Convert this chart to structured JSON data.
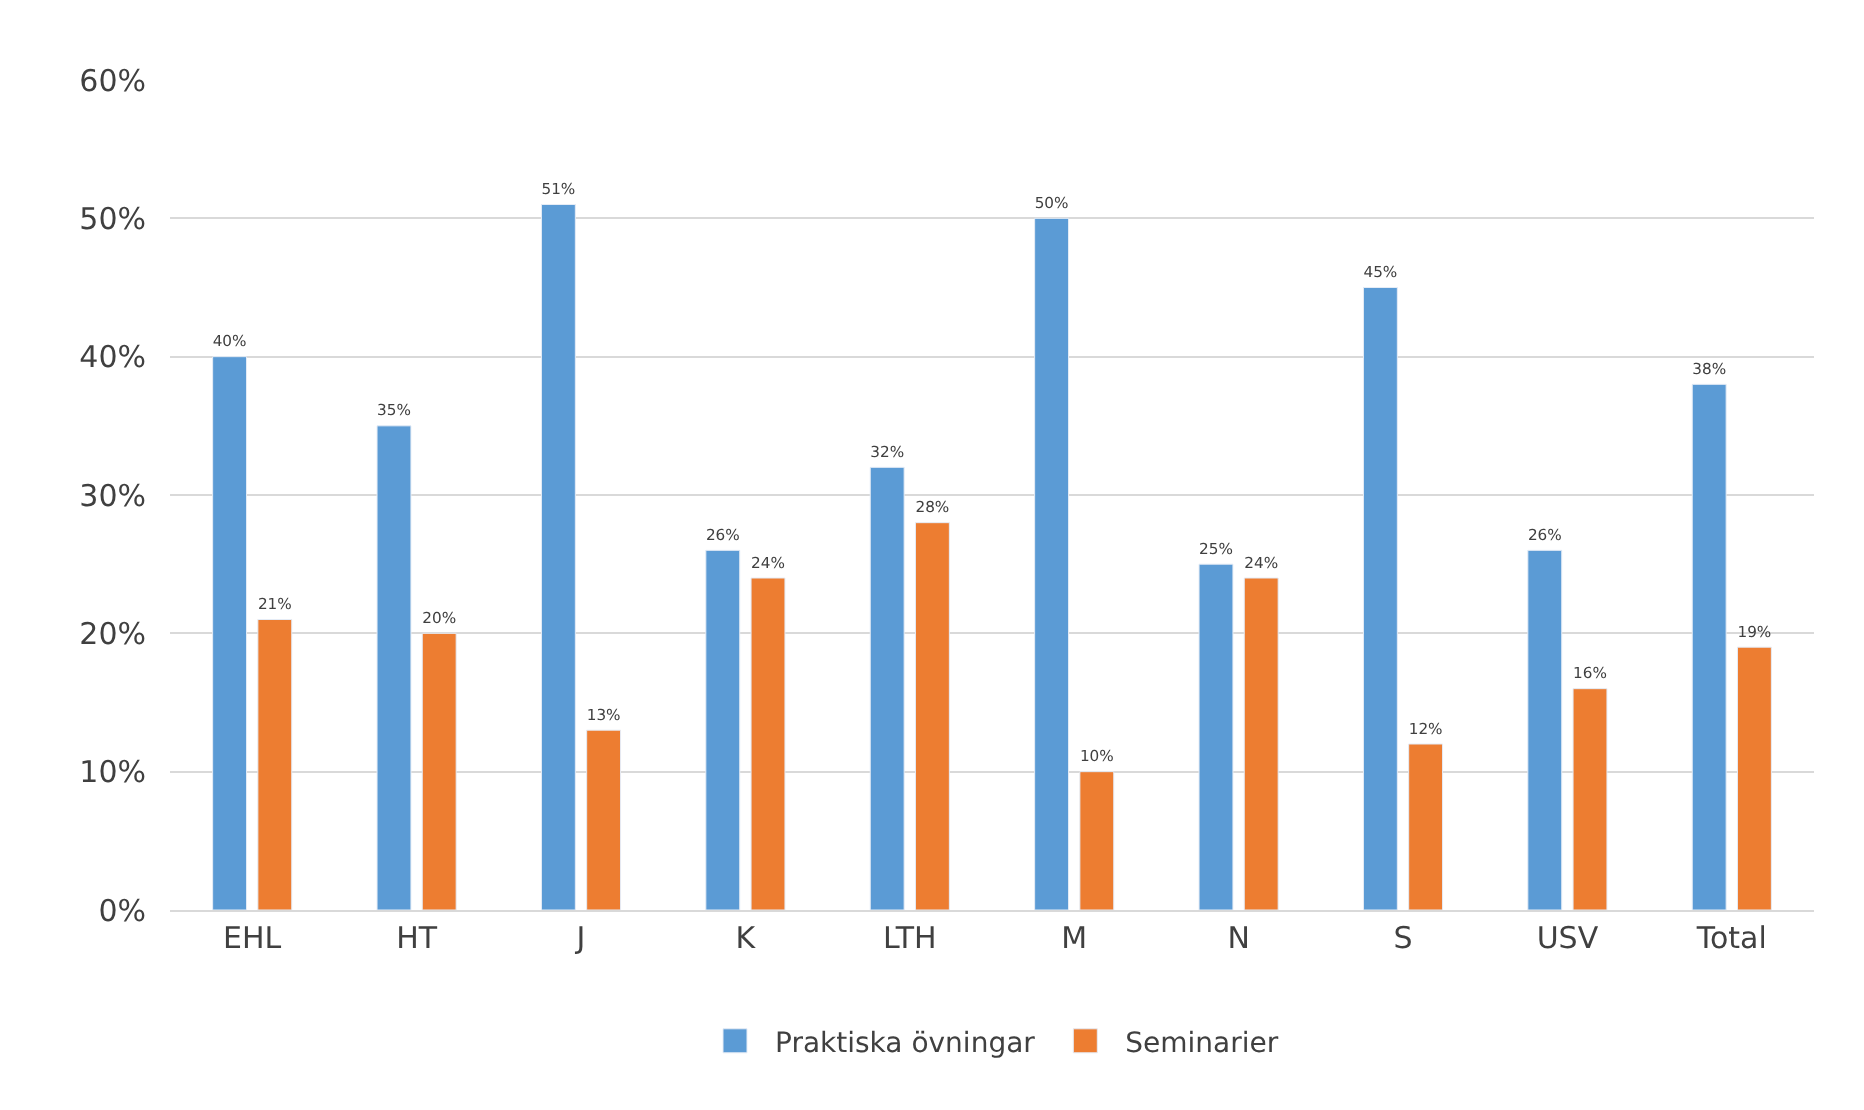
{
  "chart_data": {
    "type": "bar",
    "categories": [
      "EHL",
      "HT",
      "J",
      "K",
      "LTH",
      "M",
      "N",
      "S",
      "USV",
      "Total"
    ],
    "series": [
      {
        "name": "Praktiska övningar",
        "color": "#5b9bd5",
        "values": [
          40,
          35,
          51,
          26,
          32,
          50,
          25,
          45,
          26,
          38
        ],
        "value_labels": [
          "40%",
          "35%",
          "51%",
          "26%",
          "32%",
          "50%",
          "25%",
          "45%",
          "26%",
          "38%"
        ]
      },
      {
        "name": "Seminarier",
        "color": "#ed7d31",
        "values": [
          21,
          20,
          13,
          24,
          28,
          10,
          24,
          12,
          16,
          19
        ],
        "value_labels": [
          "21%",
          "20%",
          "13%",
          "24%",
          "28%",
          "10%",
          "24%",
          "12%",
          "16%",
          "19%"
        ]
      }
    ],
    "ylim": [
      0,
      60
    ],
    "yticks": [
      {
        "value": 0,
        "label": "0%"
      },
      {
        "value": 10,
        "label": "10%"
      },
      {
        "value": 20,
        "label": "20%"
      },
      {
        "value": 30,
        "label": "30%"
      },
      {
        "value": 40,
        "label": "40%"
      },
      {
        "value": 50,
        "label": "50%"
      },
      {
        "value": 60,
        "label": "60%"
      }
    ],
    "grid": "y",
    "legend": "bottom"
  }
}
